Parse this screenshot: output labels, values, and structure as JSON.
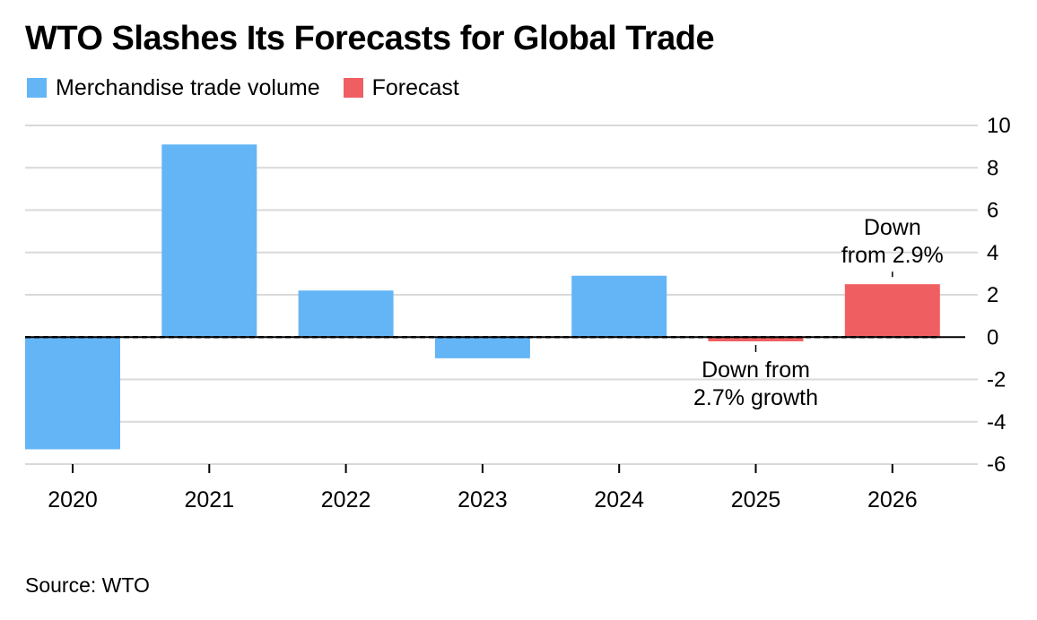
{
  "title": "WTO Slashes Its Forecasts for Global Trade",
  "legend": [
    {
      "label": "Merchandise trade volume",
      "color": "#64b5f6"
    },
    {
      "label": "Forecast",
      "color": "#ef5f62"
    }
  ],
  "source": "Source: WTO",
  "chart_data": {
    "type": "bar",
    "categories": [
      "2020",
      "2021",
      "2022",
      "2023",
      "2024",
      "2025",
      "2026"
    ],
    "series": [
      {
        "name": "Merchandise trade volume",
        "values": [
          -5.3,
          9.1,
          2.2,
          -1.0,
          2.9,
          null,
          null
        ],
        "color": "#64b5f6"
      },
      {
        "name": "Forecast",
        "values": [
          null,
          null,
          null,
          null,
          null,
          -0.2,
          2.5
        ],
        "color": "#ef5f62"
      }
    ],
    "ylim": [
      -6,
      10
    ],
    "yticks": [
      10,
      8,
      6,
      4,
      2,
      0,
      -2,
      -4,
      -6
    ],
    "ytick_labels": [
      "10",
      "8",
      "6",
      "4",
      "2",
      "0",
      "-2",
      "-4",
      "-6"
    ],
    "grid": true,
    "axis_side": "right",
    "annotations": [
      {
        "category": "2025",
        "lines": [
          "Down from",
          "2.7% growth"
        ]
      },
      {
        "category": "2026",
        "lines": [
          "Down",
          "from 2.9%"
        ]
      }
    ]
  }
}
